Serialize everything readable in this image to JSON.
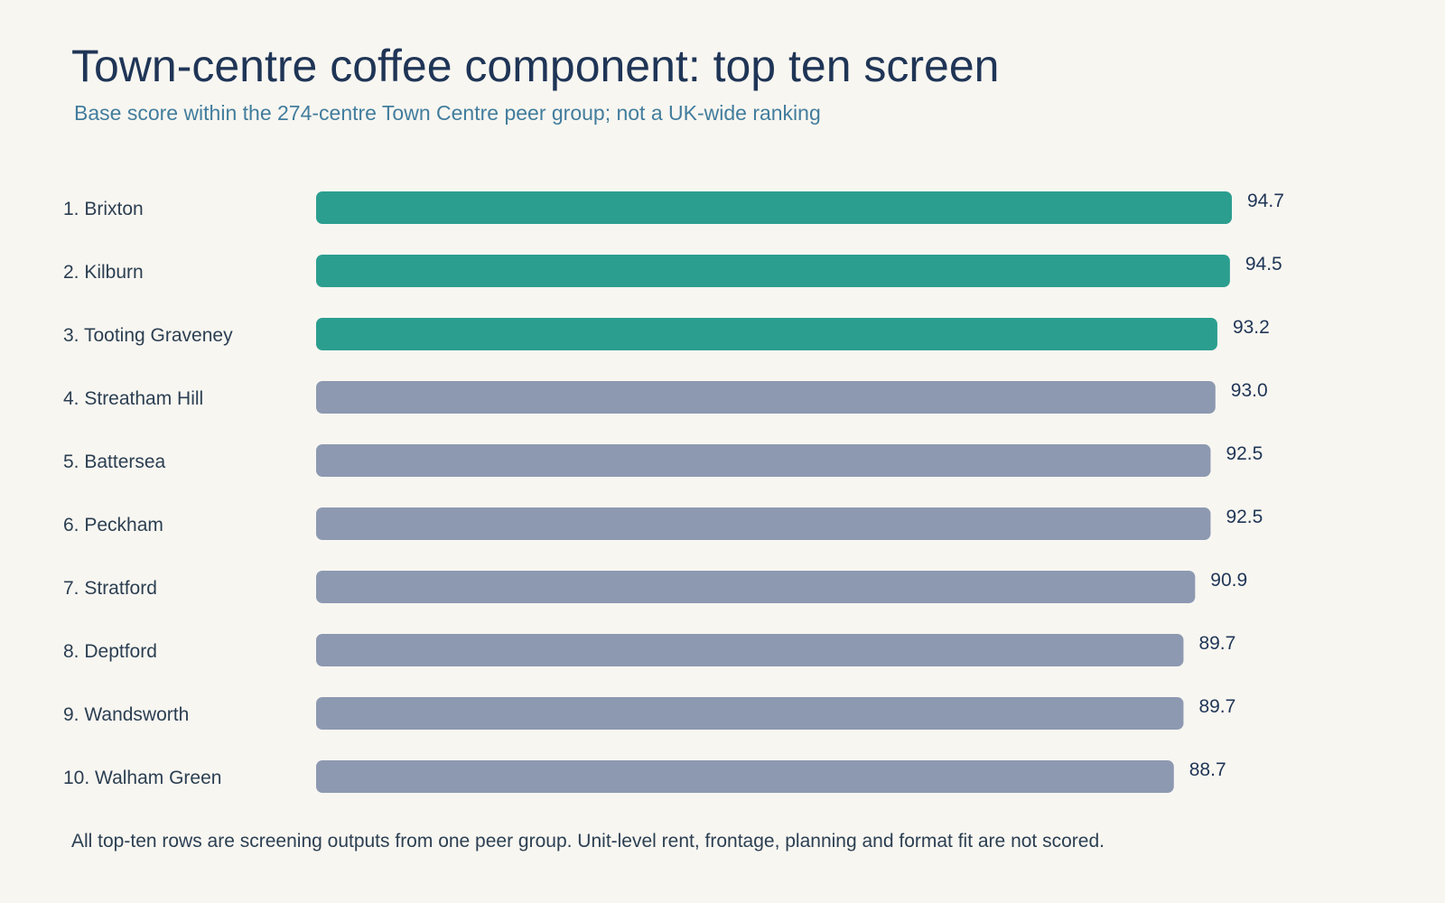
{
  "header": {
    "title": "Town-centre coffee component: top ten screen",
    "subtitle": "Base score within the 274-centre Town Centre peer group; not a UK-wide ranking"
  },
  "footer": {
    "note": "All top-ten rows are screening outputs from one peer group. Unit-level rent, frontage, planning and format fit are not scored."
  },
  "colors": {
    "highlight": "#2b9e8f",
    "default": "#8d99b1",
    "label_text": "#2b3f52",
    "value_text": "#1f3556"
  },
  "chart_data": {
    "type": "bar",
    "orientation": "horizontal",
    "categories": [
      "1. Brixton",
      "2. Kilburn",
      "3. Tooting Graveney",
      "4. Streatham Hill",
      "5. Battersea",
      "6. Peckham",
      "7. Stratford",
      "8. Deptford",
      "9. Wandsworth",
      "10. Walham Green"
    ],
    "values": [
      94.7,
      94.5,
      93.2,
      93.0,
      92.5,
      92.5,
      90.9,
      89.7,
      89.7,
      88.7
    ],
    "value_labels": [
      "94.7",
      "94.5",
      "93.2",
      "93.0",
      "92.5",
      "92.5",
      "90.9",
      "89.7",
      "89.7",
      "88.7"
    ],
    "highlighted_count": 3,
    "xlim": [
      0,
      100
    ],
    "grid": false,
    "legend": "none"
  }
}
